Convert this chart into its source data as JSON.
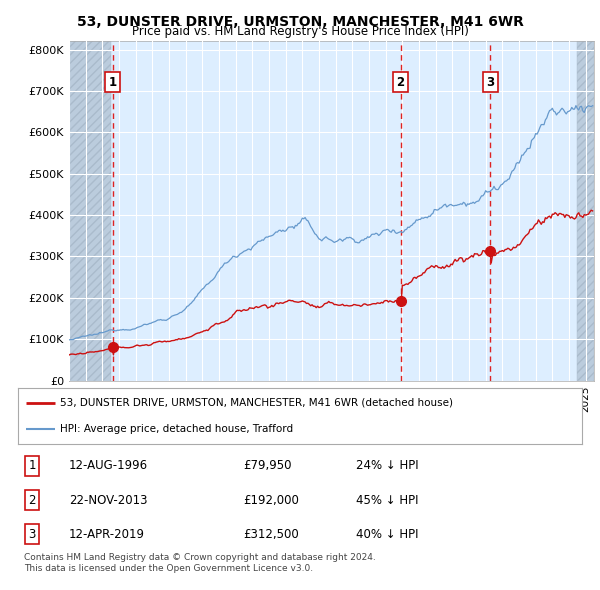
{
  "title": "53, DUNSTER DRIVE, URMSTON, MANCHESTER, M41 6WR",
  "subtitle": "Price paid vs. HM Land Registry's House Price Index (HPI)",
  "ylabel_ticks": [
    "£0",
    "£100K",
    "£200K",
    "£300K",
    "£400K",
    "£500K",
    "£600K",
    "£700K",
    "£800K"
  ],
  "ytick_values": [
    0,
    100000,
    200000,
    300000,
    400000,
    500000,
    600000,
    700000,
    800000
  ],
  "ylim": [
    0,
    820000
  ],
  "xlim_start": 1994.0,
  "xlim_end": 2025.5,
  "hpi_color": "#6699cc",
  "price_color": "#cc1111",
  "vline_color": "#dd2222",
  "hatch_left_end": 1996.5,
  "hatch_right_start": 2024.5,
  "sale_points": [
    {
      "year": 1996.617,
      "price": 79950,
      "label": "1"
    },
    {
      "year": 2013.895,
      "price": 192000,
      "label": "2"
    },
    {
      "year": 2019.278,
      "price": 312500,
      "label": "3"
    }
  ],
  "vline_years": [
    1996.617,
    2013.895,
    2019.278
  ],
  "legend_entries": [
    {
      "label": "53, DUNSTER DRIVE, URMSTON, MANCHESTER, M41 6WR (detached house)",
      "color": "#cc1111",
      "lw": 2
    },
    {
      "label": "HPI: Average price, detached house, Trafford",
      "color": "#6699cc",
      "lw": 1.5
    }
  ],
  "table_rows": [
    {
      "num": "1",
      "date": "12-AUG-1996",
      "price": "£79,950",
      "hpi": "24% ↓ HPI"
    },
    {
      "num": "2",
      "date": "22-NOV-2013",
      "price": "£192,000",
      "hpi": "45% ↓ HPI"
    },
    {
      "num": "3",
      "date": "12-APR-2019",
      "price": "£312,500",
      "hpi": "40% ↓ HPI"
    }
  ],
  "footnote": "Contains HM Land Registry data © Crown copyright and database right 2024.\nThis data is licensed under the Open Government Licence v3.0.",
  "background_color": "#ffffff",
  "plot_bg_color": "#ddeeff",
  "grid_color": "#ccddee",
  "hatch_color": "#bbccdd"
}
